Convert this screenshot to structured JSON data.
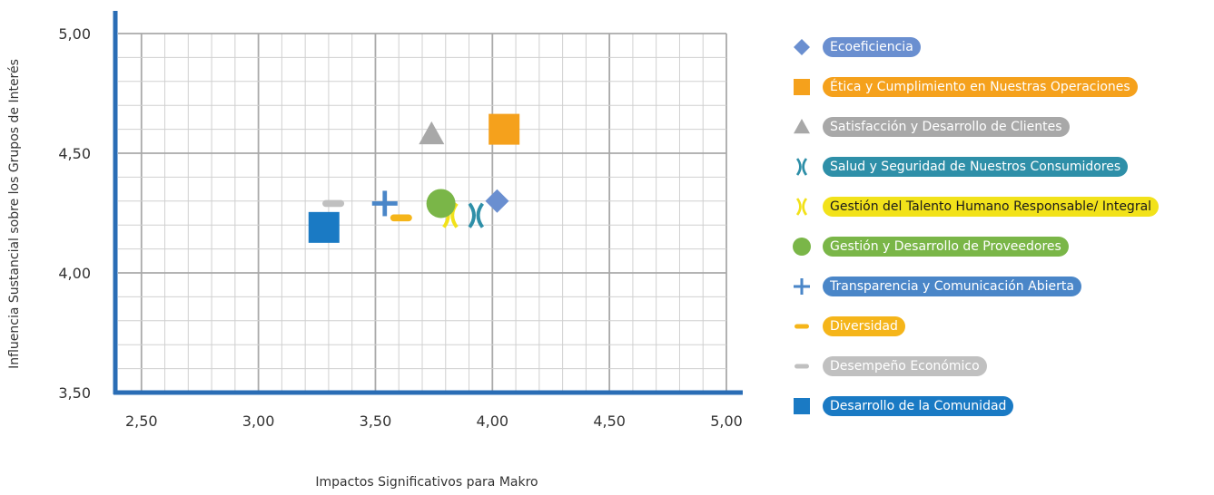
{
  "chart_data": {
    "type": "scatter",
    "xlabel": "Impactos Significativos para Makro",
    "ylabel": "Influencia Sustancial sobre los Grupos de Interés",
    "xlim": [
      2.4,
      5.0
    ],
    "ylim": [
      3.5,
      5.0
    ],
    "x_ticks": [
      "2,50",
      "3,00",
      "3,50",
      "4,00",
      "4,50",
      "5,00"
    ],
    "y_ticks": [
      "3,50",
      "4,00",
      "4,50",
      "5,00"
    ],
    "grid": true,
    "legend_position": "right",
    "series": [
      {
        "name": "Ecoeficiencia",
        "marker": "diamond",
        "color": "#6a8fd0",
        "x": 4.02,
        "y": 4.3
      },
      {
        "name": "Ética y Cumplimiento en Nuestras Operaciones",
        "marker": "square",
        "color": "#f5a11c",
        "x": 4.05,
        "y": 4.6
      },
      {
        "name": "Satisfacción y Desarrollo de Clientes",
        "marker": "triangle",
        "color": "#a8a8a8",
        "x": 3.74,
        "y": 4.58
      },
      {
        "name": "Salud y Seguridad de Nuestros Consumidores",
        "marker": "x",
        "color": "#2e8fa8",
        "x": 3.93,
        "y": 4.24
      },
      {
        "name": "Gestión del Talento Humano Responsable/ Integral",
        "marker": "x",
        "color": "#f2e21a",
        "x": 3.82,
        "y": 4.24
      },
      {
        "name": "Gestión y Desarrollo de Proveedores",
        "marker": "circle",
        "color": "#7ab648",
        "x": 3.78,
        "y": 4.29
      },
      {
        "name": "Transparencia y Comunicación Abierta",
        "marker": "plus",
        "color": "#4a86c8",
        "x": 3.54,
        "y": 4.29
      },
      {
        "name": "Diversidad",
        "marker": "minus",
        "color": "#f5b51a",
        "x": 3.61,
        "y": 4.23
      },
      {
        "name": "Desempeño Económico",
        "marker": "minus",
        "color": "#c0c0c0",
        "x": 3.32,
        "y": 4.29
      },
      {
        "name": "Desarrollo de la Comunidad",
        "marker": "square",
        "color": "#1a7ac4",
        "x": 3.28,
        "y": 4.19
      }
    ]
  }
}
